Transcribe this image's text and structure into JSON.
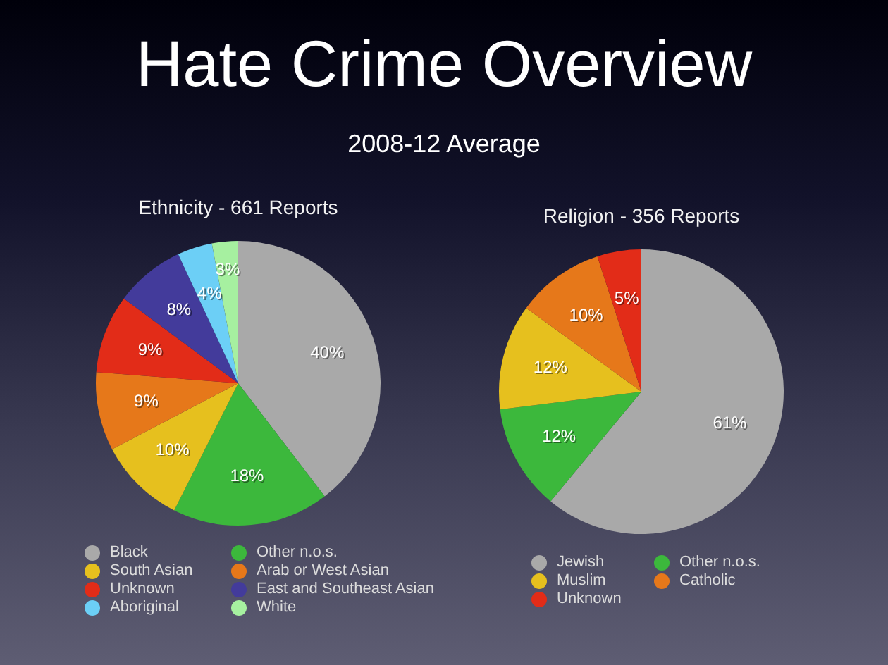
{
  "chart_data": [
    {
      "type": "other",
      "title": "Hate Crime Overview",
      "subtitle": "2008-12 Average"
    },
    {
      "type": "pie",
      "title": "Ethnicity - 661 Reports",
      "categories": [
        "Black",
        "Other n.o.s.",
        "South Asian",
        "Arab or West Asian",
        "Unknown",
        "East and Southeast Asian",
        "Aboriginal",
        "White"
      ],
      "values": [
        40,
        18,
        10,
        9,
        9,
        8,
        4,
        3
      ],
      "colors": [
        "#a9a9a9",
        "#3cb83c",
        "#e6c01e",
        "#e6781a",
        "#e22c18",
        "#433b9b",
        "#6ccff6",
        "#a6f0a0"
      ],
      "value_labels": [
        "40%",
        "18%",
        "10%",
        "9%",
        "9%",
        "8%",
        "4%",
        "3%"
      ],
      "legend": "bottom"
    },
    {
      "type": "pie",
      "title": "Religion - 356 Reports",
      "categories": [
        "Jewish",
        "Other n.o.s.",
        "Muslim",
        "Catholic",
        "Unknown"
      ],
      "values": [
        61,
        12,
        12,
        10,
        5
      ],
      "colors": [
        "#a9a9a9",
        "#3cb83c",
        "#e6c01e",
        "#e6781a",
        "#e22c18"
      ],
      "value_labels": [
        "61%",
        "12%",
        "12%",
        "10%",
        "5%"
      ],
      "legend": "bottom"
    }
  ]
}
